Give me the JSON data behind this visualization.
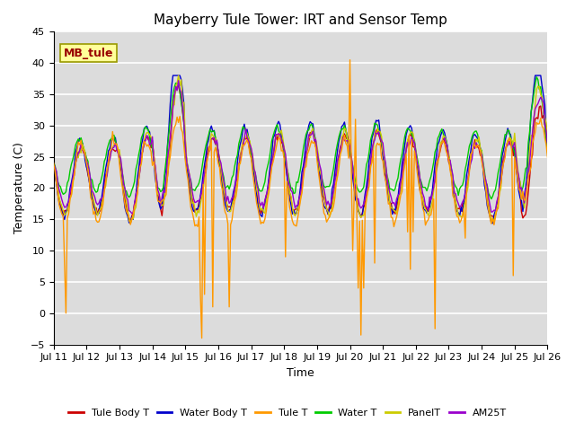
{
  "title": "Mayberry Tule Tower: IRT and Sensor Temp",
  "xlabel": "Time",
  "ylabel": "Temperature (C)",
  "ylim": [
    -5,
    45
  ],
  "yticks": [
    -5,
    0,
    5,
    10,
    15,
    20,
    25,
    30,
    35,
    40,
    45
  ],
  "xlim": [
    0,
    360
  ],
  "xtick_positions": [
    0,
    24,
    48,
    72,
    96,
    120,
    144,
    168,
    192,
    216,
    240,
    264,
    288,
    312,
    336,
    360
  ],
  "xtick_labels": [
    "Jul 11",
    "Jul 12",
    "Jul 13",
    "Jul 14",
    "Jul 15",
    "Jul 16",
    "Jul 17",
    "Jul 18",
    "Jul 19",
    "Jul 20",
    "Jul 21",
    "Jul 22",
    "Jul 23",
    "Jul 24",
    "Jul 25",
    "Jul 26"
  ],
  "bg_color": "#dcdcdc",
  "fig_color": "#ffffff",
  "series_colors": {
    "Tule Body T": "#cc0000",
    "Water Body T": "#0000cc",
    "Tule T": "#ff9900",
    "Water T": "#00cc00",
    "PanelT": "#cccc00",
    "AM25T": "#9900cc"
  },
  "label_box_text": "MB_tule",
  "label_box_color": "#ffff99",
  "label_box_edge": "#999900",
  "label_box_text_color": "#990000"
}
